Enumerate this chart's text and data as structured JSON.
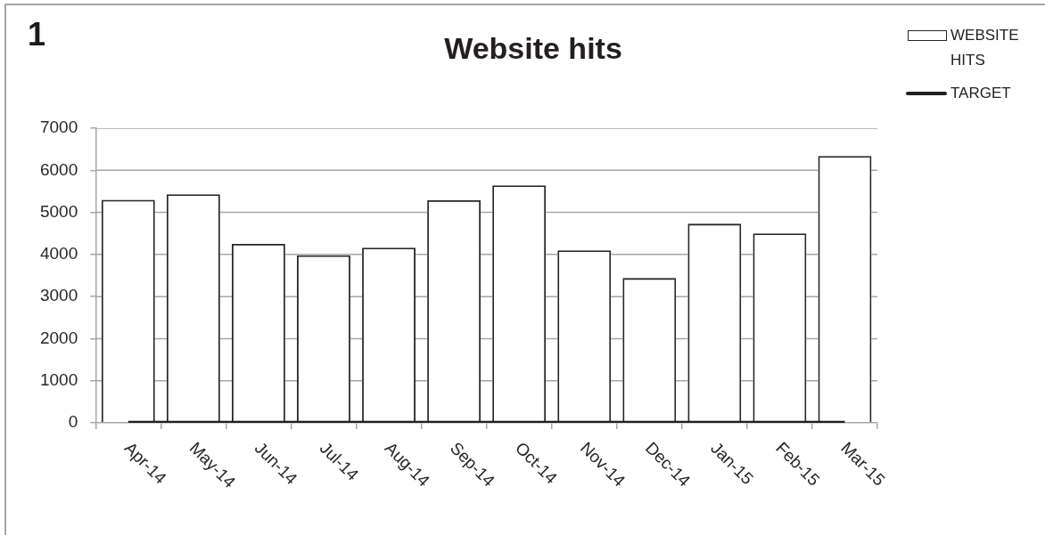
{
  "chart_data": {
    "type": "bar",
    "title": "Website hits",
    "annotations": [
      "1"
    ],
    "categories": [
      "Apr-14",
      "May-14",
      "Jun-14",
      "Jul-14",
      "Aug-14",
      "Sep-14",
      "Oct-14",
      "Nov-14",
      "Dec-14",
      "Jan-15",
      "Feb-15",
      "Mar-15"
    ],
    "series": [
      {
        "name": "WEBSITE HITS",
        "color": "#262626",
        "values": [
          5300,
          5430,
          4250,
          3980,
          4160,
          5290,
          5640,
          4100,
          3440,
          4730,
          4500,
          6340
        ]
      },
      {
        "name": "TARGET",
        "type": "line",
        "color": "#231f20",
        "values": [
          0,
          0,
          0,
          0,
          0,
          0,
          0,
          0,
          0,
          0,
          0,
          0
        ]
      }
    ],
    "ylim": [
      0,
      7000
    ],
    "yticks": [
      0,
      1000,
      2000,
      3000,
      4000,
      5000,
      6000,
      7000
    ],
    "grid": "y",
    "legend": "top right",
    "marker": "none"
  }
}
